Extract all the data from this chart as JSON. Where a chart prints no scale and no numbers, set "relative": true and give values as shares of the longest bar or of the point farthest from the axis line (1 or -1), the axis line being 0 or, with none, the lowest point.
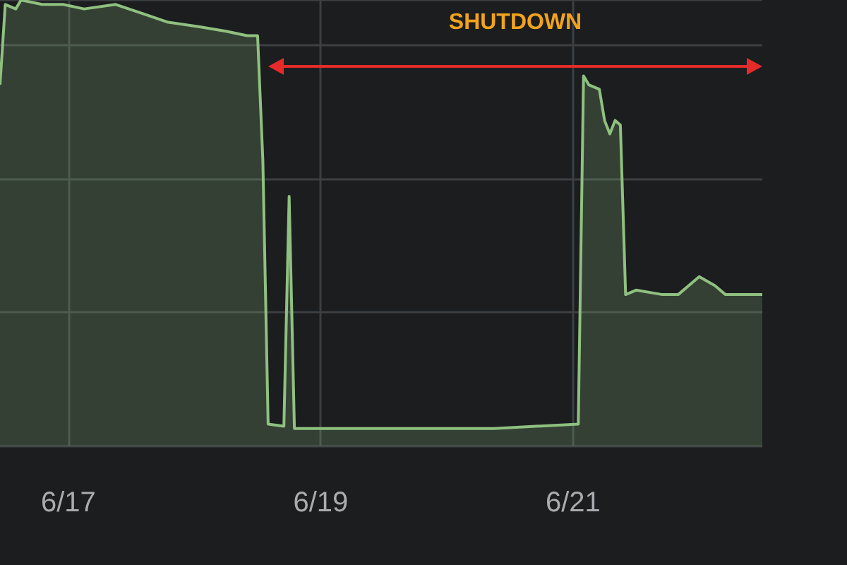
{
  "chart_data": {
    "type": "area",
    "relative": true,
    "grid": true,
    "marker": "none",
    "line_style": "solid",
    "annotations": [
      "SHUTDOWN"
    ],
    "xlim": [
      "--06-16T11:00",
      "--06-22T12:00"
    ],
    "xticks": [
      {
        "value": "--06-17",
        "label": "6/17"
      },
      {
        "value": "--06-19",
        "label": "6/19"
      },
      {
        "value": "--06-21",
        "label": "6/21"
      }
    ],
    "series": [
      {
        "color": "#8fc07f",
        "x": [
          "--06-16T11:00",
          "--06-16T12:00",
          "--06-16T14:00",
          "--06-16T15:00",
          "--06-16T19:00",
          "--06-16T23:00",
          "--06-17T03:00",
          "--06-17T09:00",
          "--06-17T14:00",
          "--06-17T19:00",
          "--06-18T01:00",
          "--06-18T06:00",
          "--06-18T10:00",
          "--06-18T12:00",
          "--06-18T13:00",
          "--06-18T14:00",
          "--06-18T17:00",
          "--06-18T18:00",
          "--06-18T19:00",
          "--06-18T22:00",
          "--06-19T20:00",
          "--06-20T09:00",
          "--06-21T01:00",
          "--06-21T02:00",
          "--06-21T03:00",
          "--06-21T05:00",
          "--06-21T06:00",
          "--06-21T07:00",
          "--06-21T08:00",
          "--06-21T09:00",
          "--06-21T10:00",
          "--06-21T12:00",
          "--06-21T17:00",
          "--06-21T20:00",
          "--06-22T00:00",
          "--06-22T03:00",
          "--06-22T05:00",
          "--06-22T12:00"
        ],
        "values": [
          0.81,
          0.99,
          0.98,
          1,
          0.99,
          0.99,
          0.98,
          0.99,
          0.97,
          0.95,
          0.94,
          0.93,
          0.92,
          0.92,
          0.64,
          0.05,
          0.045,
          0.56,
          0.04,
          0.04,
          0.04,
          0.04,
          0.05,
          0.83,
          0.81,
          0.8,
          0.73,
          0.7,
          0.73,
          0.72,
          0.34,
          0.35,
          0.34,
          0.34,
          0.38,
          0.36,
          0.34,
          0.34
        ]
      }
    ]
  }
}
